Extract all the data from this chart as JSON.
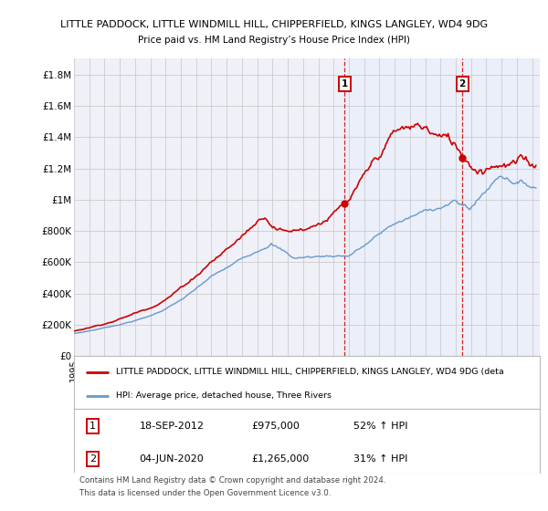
{
  "title": "LITTLE PADDOCK, LITTLE WINDMILL HILL, CHIPPERFIELD, KINGS LANGLEY, WD4 9DG",
  "subtitle": "Price paid vs. HM Land Registry’s House Price Index (HPI)",
  "ylabel_ticks": [
    "£0",
    "£200K",
    "£400K",
    "£600K",
    "£800K",
    "£1M",
    "£1.2M",
    "£1.4M",
    "£1.6M",
    "£1.8M"
  ],
  "ylabel_values": [
    0,
    200000,
    400000,
    600000,
    800000,
    1000000,
    1200000,
    1400000,
    1600000,
    1800000
  ],
  "ylim": [
    0,
    1900000
  ],
  "xlim_start": 1995.0,
  "xlim_end": 2025.5,
  "sale1_year": 2012.72,
  "sale1_price": 975000,
  "sale2_year": 2020.43,
  "sale2_price": 1265000,
  "red_color": "#cc0000",
  "blue_color": "#6699cc",
  "blue_fill_color": "#ddeeff",
  "vline_color": "#cc0000",
  "grid_color": "#cccccc",
  "bg_color": "#ffffff",
  "plot_bg_color": "#f0f0f8",
  "legend_label_red": "LITTLE PADDOCK, LITTLE WINDMILL HILL, CHIPPERFIELD, KINGS LANGLEY, WD4 9DG (deta",
  "legend_label_blue": "HPI: Average price, detached house, Three Rivers",
  "table_rows": [
    [
      "1",
      "18-SEP-2012",
      "£975,000",
      "52% ↑ HPI"
    ],
    [
      "2",
      "04-JUN-2020",
      "£1,265,000",
      "31% ↑ HPI"
    ]
  ],
  "footnote1": "Contains HM Land Registry data © Crown copyright and database right 2024.",
  "footnote2": "This data is licensed under the Open Government Licence v3.0."
}
